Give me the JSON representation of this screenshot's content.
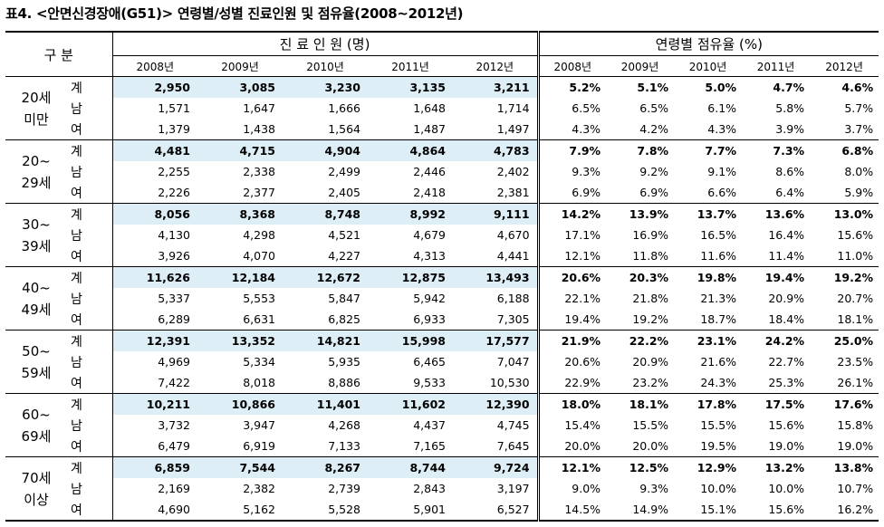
{
  "title": "표4. <안면신경장애(G51)> 연령별/성별 진료인원 및 점유율(2008~2012년)",
  "header": {
    "category": "구 분",
    "patients": "진 료 인 원 (명)",
    "share": "연령별 점유율 (%)",
    "years": [
      "2008년",
      "2009년",
      "2010년",
      "2011년",
      "2012년"
    ]
  },
  "groups": [
    {
      "label": "20세\n미만",
      "rows": [
        {
          "sex": "계",
          "n": [
            "2,950",
            "3,085",
            "3,230",
            "3,135",
            "3,211"
          ],
          "p": [
            "5.2%",
            "5.1%",
            "5.0%",
            "4.7%",
            "4.6%"
          ]
        },
        {
          "sex": "남",
          "n": [
            "1,571",
            "1,647",
            "1,666",
            "1,648",
            "1,714"
          ],
          "p": [
            "6.5%",
            "6.5%",
            "6.1%",
            "5.8%",
            "5.7%"
          ]
        },
        {
          "sex": "여",
          "n": [
            "1,379",
            "1,438",
            "1,564",
            "1,487",
            "1,497"
          ],
          "p": [
            "4.3%",
            "4.2%",
            "4.3%",
            "3.9%",
            "3.7%"
          ]
        }
      ]
    },
    {
      "label": "20~\n29세",
      "rows": [
        {
          "sex": "계",
          "n": [
            "4,481",
            "4,715",
            "4,904",
            "4,864",
            "4,783"
          ],
          "p": [
            "7.9%",
            "7.8%",
            "7.7%",
            "7.3%",
            "6.8%"
          ]
        },
        {
          "sex": "남",
          "n": [
            "2,255",
            "2,338",
            "2,499",
            "2,446",
            "2,402"
          ],
          "p": [
            "9.3%",
            "9.2%",
            "9.1%",
            "8.6%",
            "8.0%"
          ]
        },
        {
          "sex": "여",
          "n": [
            "2,226",
            "2,377",
            "2,405",
            "2,418",
            "2,381"
          ],
          "p": [
            "6.9%",
            "6.9%",
            "6.6%",
            "6.4%",
            "5.9%"
          ]
        }
      ]
    },
    {
      "label": "30~\n39세",
      "rows": [
        {
          "sex": "계",
          "n": [
            "8,056",
            "8,368",
            "8,748",
            "8,992",
            "9,111"
          ],
          "p": [
            "14.2%",
            "13.9%",
            "13.7%",
            "13.6%",
            "13.0%"
          ]
        },
        {
          "sex": "남",
          "n": [
            "4,130",
            "4,298",
            "4,521",
            "4,679",
            "4,670"
          ],
          "p": [
            "17.1%",
            "16.9%",
            "16.5%",
            "16.4%",
            "15.6%"
          ]
        },
        {
          "sex": "여",
          "n": [
            "3,926",
            "4,070",
            "4,227",
            "4,313",
            "4,441"
          ],
          "p": [
            "12.1%",
            "11.8%",
            "11.6%",
            "11.4%",
            "11.0%"
          ]
        }
      ]
    },
    {
      "label": "40~\n49세",
      "rows": [
        {
          "sex": "계",
          "n": [
            "11,626",
            "12,184",
            "12,672",
            "12,875",
            "13,493"
          ],
          "p": [
            "20.6%",
            "20.3%",
            "19.8%",
            "19.4%",
            "19.2%"
          ]
        },
        {
          "sex": "남",
          "n": [
            "5,337",
            "5,553",
            "5,847",
            "5,942",
            "6,188"
          ],
          "p": [
            "22.1%",
            "21.8%",
            "21.3%",
            "20.9%",
            "20.7%"
          ]
        },
        {
          "sex": "여",
          "n": [
            "6,289",
            "6,631",
            "6,825",
            "6,933",
            "7,305"
          ],
          "p": [
            "19.4%",
            "19.2%",
            "18.7%",
            "18.4%",
            "18.1%"
          ]
        }
      ]
    },
    {
      "label": "50~\n59세",
      "rows": [
        {
          "sex": "계",
          "n": [
            "12,391",
            "13,352",
            "14,821",
            "15,998",
            "17,577"
          ],
          "p": [
            "21.9%",
            "22.2%",
            "23.1%",
            "24.2%",
            "25.0%"
          ]
        },
        {
          "sex": "남",
          "n": [
            "4,969",
            "5,334",
            "5,935",
            "6,465",
            "7,047"
          ],
          "p": [
            "20.6%",
            "20.9%",
            "21.6%",
            "22.7%",
            "23.5%"
          ]
        },
        {
          "sex": "여",
          "n": [
            "7,422",
            "8,018",
            "8,886",
            "9,533",
            "10,530"
          ],
          "p": [
            "22.9%",
            "23.2%",
            "24.3%",
            "25.3%",
            "26.1%"
          ]
        }
      ]
    },
    {
      "label": "60~\n69세",
      "rows": [
        {
          "sex": "계",
          "n": [
            "10,211",
            "10,866",
            "11,401",
            "11,602",
            "12,390"
          ],
          "p": [
            "18.0%",
            "18.1%",
            "17.8%",
            "17.5%",
            "17.6%"
          ]
        },
        {
          "sex": "남",
          "n": [
            "3,732",
            "3,947",
            "4,268",
            "4,437",
            "4,745"
          ],
          "p": [
            "15.4%",
            "15.5%",
            "15.5%",
            "15.6%",
            "15.8%"
          ]
        },
        {
          "sex": "여",
          "n": [
            "6,479",
            "6,919",
            "7,133",
            "7,165",
            "7,645"
          ],
          "p": [
            "20.0%",
            "20.0%",
            "19.5%",
            "19.0%",
            "19.0%"
          ]
        }
      ]
    },
    {
      "label": "70세\n이상",
      "rows": [
        {
          "sex": "계",
          "n": [
            "6,859",
            "7,544",
            "8,267",
            "8,744",
            "9,724"
          ],
          "p": [
            "12.1%",
            "12.5%",
            "12.9%",
            "13.2%",
            "13.8%"
          ]
        },
        {
          "sex": "남",
          "n": [
            "2,169",
            "2,382",
            "2,739",
            "2,843",
            "3,197"
          ],
          "p": [
            "9.0%",
            "9.3%",
            "10.0%",
            "10.0%",
            "10.7%"
          ]
        },
        {
          "sex": "여",
          "n": [
            "4,690",
            "5,162",
            "5,528",
            "5,901",
            "6,527"
          ],
          "p": [
            "14.5%",
            "14.9%",
            "15.1%",
            "15.6%",
            "16.2%"
          ]
        }
      ]
    }
  ]
}
